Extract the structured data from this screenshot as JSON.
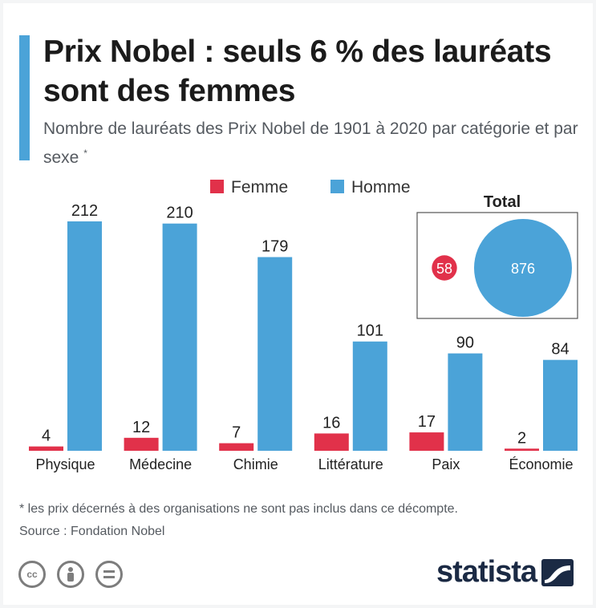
{
  "header": {
    "title": "Prix Nobel : seuls 6 % des lauréats sont des femmes",
    "subtitle": "Nombre de lauréats des Prix Nobel de 1901 à 2020 par catégorie et par sexe",
    "subtitle_mark": "*"
  },
  "chart_data": {
    "type": "bar",
    "categories": [
      "Physique",
      "Médecine",
      "Chimie",
      "Littérature",
      "Paix",
      "Économie"
    ],
    "series": [
      {
        "name": "Femme",
        "values": [
          4,
          12,
          7,
          16,
          17,
          2
        ],
        "color": "#e1314a"
      },
      {
        "name": "Homme",
        "values": [
          212,
          210,
          179,
          101,
          90,
          84
        ],
        "color": "#4ba3d8"
      }
    ],
    "ylim": [
      0,
      212
    ],
    "grid": false,
    "legend": "top-center",
    "total": {
      "title": "Total",
      "femme": 58,
      "homme": 876
    }
  },
  "footer": {
    "note": "* les prix décernés à des organisations ne sont pas inclus dans ce décompte.",
    "source": "Source : Fondation Nobel",
    "brand": "statista",
    "license_icons": [
      "cc-icon",
      "by-icon",
      "nd-icon"
    ]
  }
}
